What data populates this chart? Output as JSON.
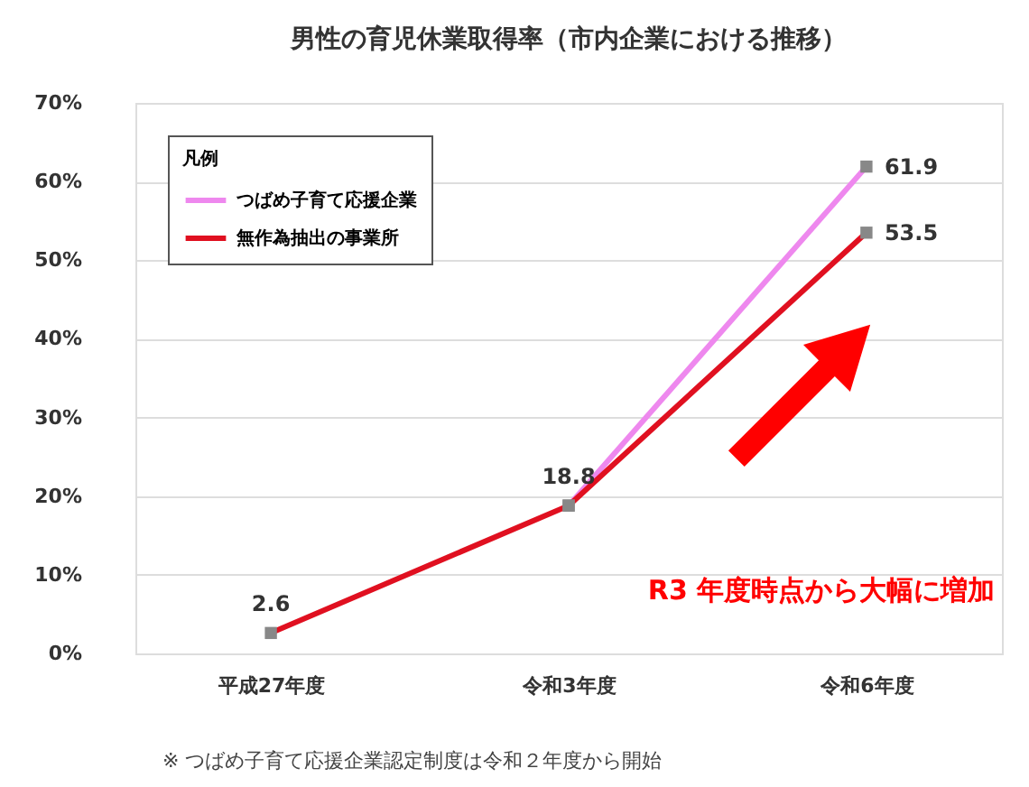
{
  "chart_data": {
    "type": "line",
    "title": "男性の育児休業取得率（市内企業における推移）",
    "categories": [
      "平成27年度",
      "令和3年度",
      "令和6年度"
    ],
    "series": [
      {
        "name": "つばめ子育て応援企業",
        "color": "#ee88ee",
        "values": [
          null,
          18.8,
          61.9
        ],
        "value_labels": [
          null,
          null,
          "61.9"
        ]
      },
      {
        "name": "無作為抽出の事業所",
        "color": "#e01020",
        "values": [
          2.6,
          18.8,
          53.5
        ],
        "value_labels": [
          "2.6",
          "18.8",
          "53.5"
        ]
      }
    ],
    "ylim": [
      0,
      70
    ],
    "yticks": [
      {
        "value": 0,
        "label": "0%"
      },
      {
        "value": 10,
        "label": "10%"
      },
      {
        "value": 20,
        "label": "20%"
      },
      {
        "value": 30,
        "label": "30%"
      },
      {
        "value": 40,
        "label": "40%"
      },
      {
        "value": 50,
        "label": "50%"
      },
      {
        "value": 60,
        "label": "60%"
      },
      {
        "value": 70,
        "label": "70%"
      }
    ],
    "grid": "y",
    "legend": "top left",
    "legend_title": "凡例",
    "marker": "square",
    "line_style": "solid",
    "annotations": [
      "R3 年度時点から大幅に増加",
      "※ つばめ子育て応援企業認定制度は令和２年度から開始"
    ]
  }
}
